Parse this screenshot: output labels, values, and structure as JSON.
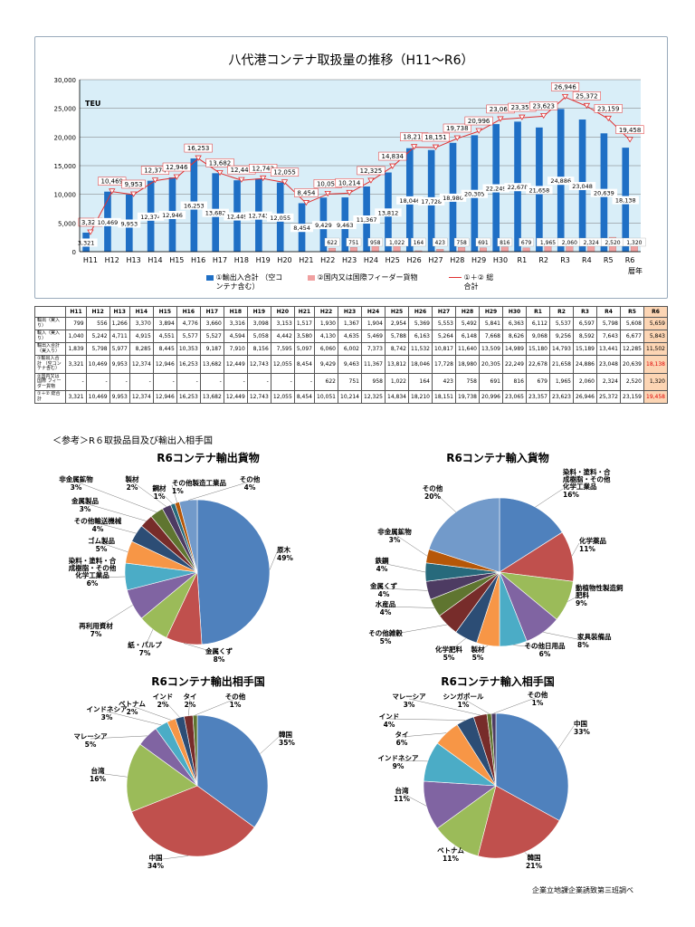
{
  "main_chart": {
    "title": "八代港コンテナ取扱量の推移（H11～R6）",
    "ylabel": "TEU",
    "x_unit": "暦年",
    "legend": {
      "bar1": "①輸出入合計 （空コンテナ含む）",
      "bar2": "②国内又は国際フィーダー貨物",
      "line": "①＋② 総合計"
    },
    "colors": {
      "bar1": "#1f6fc5",
      "bar2": "#f0a0a0",
      "line": "#e03030"
    }
  },
  "chart_data": [
    {
      "type": "bar",
      "title": "八代港コンテナ取扱量の推移（H11～R6）",
      "ylabel": "TEU",
      "ylim": [
        0,
        30000
      ],
      "yticks": [
        "0",
        "5,000",
        "10,000",
        "15,000",
        "20,000",
        "25,000",
        "30,000"
      ],
      "categories": [
        "H11",
        "H12",
        "H13",
        "H14",
        "H15",
        "H16",
        "H17",
        "H18",
        "H19",
        "H20",
        "H21",
        "H22",
        "H23",
        "H24",
        "H25",
        "H26",
        "H27",
        "H28",
        "H29",
        "H30",
        "R1",
        "R2",
        "R3",
        "R4",
        "R5",
        "R6"
      ],
      "series": [
        {
          "name": "①輸出入合計 （空コンテナ含む）",
          "type": "bar",
          "values": [
            3321,
            10469,
            9953,
            12374,
            12946,
            16253,
            13682,
            12449,
            12743,
            12055,
            8454,
            9429,
            9463,
            11367,
            13812,
            18046,
            17728,
            18980,
            20305,
            22249,
            22678,
            21658,
            24886,
            23048,
            20639,
            18138
          ]
        },
        {
          "name": "②国内又は国際フィーダー貨物",
          "type": "bar",
          "values": [
            null,
            null,
            null,
            null,
            null,
            null,
            null,
            null,
            null,
            null,
            null,
            622,
            751,
            958,
            1022,
            164,
            423,
            758,
            691,
            816,
            679,
            1965,
            2060,
            2324,
            2520,
            1320
          ]
        },
        {
          "name": "①＋② 総合計",
          "type": "line",
          "values": [
            3321,
            10469,
            9953,
            12374,
            12946,
            16253,
            13682,
            12449,
            12743,
            12055,
            8454,
            10051,
            10214,
            12325,
            14834,
            18210,
            18151,
            19738,
            20996,
            23065,
            23357,
            23623,
            26946,
            25372,
            23159,
            19458
          ]
        }
      ]
    },
    {
      "type": "pie",
      "title": "R6コンテナ輸出貨物",
      "slices": [
        {
          "label": "原木",
          "value": 49
        },
        {
          "label": "金属くず",
          "value": 8
        },
        {
          "label": "紙・パルプ",
          "value": 7
        },
        {
          "label": "再利用資材",
          "value": 7
        },
        {
          "label": "染料・塗料・合成樹脂・その他化学工業品",
          "value": 6
        },
        {
          "label": "ゴム製品",
          "value": 5
        },
        {
          "label": "その他輸送機械",
          "value": 4
        },
        {
          "label": "金属製品",
          "value": 3
        },
        {
          "label": "非金属鉱物",
          "value": 3
        },
        {
          "label": "製材",
          "value": 2
        },
        {
          "label": "鋼材",
          "value": 1
        },
        {
          "label": "その他製造工業品",
          "value": 1
        },
        {
          "label": "その他",
          "value": 4
        }
      ]
    },
    {
      "type": "pie",
      "title": "R6コンテナ輸入貨物",
      "slices": [
        {
          "label": "染料・塗料・合成樹脂・その他化学工業品",
          "value": 16
        },
        {
          "label": "化学薬品",
          "value": 11
        },
        {
          "label": "動植物性製造飼肥料",
          "value": 9
        },
        {
          "label": "家具装備品",
          "value": 8
        },
        {
          "label": "その他日用品",
          "value": 6
        },
        {
          "label": "製材",
          "value": 5
        },
        {
          "label": "化学肥料",
          "value": 5
        },
        {
          "label": "その他雑穀",
          "value": 5
        },
        {
          "label": "水産品",
          "value": 4
        },
        {
          "label": "金属くず",
          "value": 4
        },
        {
          "label": "鉄鋼",
          "value": 4
        },
        {
          "label": "非金属鉱物",
          "value": 3
        },
        {
          "label": "その他",
          "value": 20
        }
      ]
    },
    {
      "type": "pie",
      "title": "R6コンテナ輸出相手国",
      "slices": [
        {
          "label": "韓国",
          "value": 35
        },
        {
          "label": "中国",
          "value": 34
        },
        {
          "label": "台湾",
          "value": 16
        },
        {
          "label": "マレーシア",
          "value": 5
        },
        {
          "label": "インドネシア",
          "value": 3
        },
        {
          "label": "ベトナム",
          "value": 2
        },
        {
          "label": "インド",
          "value": 2
        },
        {
          "label": "タイ",
          "value": 2
        },
        {
          "label": "その他",
          "value": 1
        }
      ]
    },
    {
      "type": "pie",
      "title": "R6コンテナ輸入相手国",
      "slices": [
        {
          "label": "中国",
          "value": 33
        },
        {
          "label": "韓国",
          "value": 21
        },
        {
          "label": "ベトナム",
          "value": 11
        },
        {
          "label": "台湾",
          "value": 11
        },
        {
          "label": "インドネシア",
          "value": 9
        },
        {
          "label": "タイ",
          "value": 6
        },
        {
          "label": "インド",
          "value": 4
        },
        {
          "label": "マレーシア",
          "value": 3
        },
        {
          "label": "シンガポール",
          "value": 1
        },
        {
          "label": "その他",
          "value": 1
        }
      ]
    }
  ],
  "table": {
    "headers": [
      "",
      "H11",
      "H12",
      "H13",
      "H14",
      "H15",
      "H16",
      "H17",
      "H18",
      "H19",
      "H20",
      "H21",
      "H22",
      "H23",
      "H24",
      "H25",
      "H26",
      "H27",
      "H28",
      "H29",
      "H30",
      "R1",
      "R2",
      "R3",
      "R4",
      "R5",
      "R6"
    ],
    "rows": [
      {
        "label": "輸出（実入り）",
        "values": [
          "799",
          "556",
          "1,266",
          "3,370",
          "3,894",
          "4,776",
          "3,660",
          "3,316",
          "3,098",
          "3,153",
          "1,517",
          "1,930",
          "1,367",
          "1,904",
          "2,954",
          "5,369",
          "5,553",
          "5,492",
          "5,841",
          "6,363",
          "6,112",
          "5,537",
          "6,597",
          "5,798",
          "5,608",
          "5,659"
        ]
      },
      {
        "label": "輸入（実入り）",
        "values": [
          "1,040",
          "5,242",
          "4,711",
          "4,915",
          "4,551",
          "5,577",
          "5,527",
          "4,594",
          "5,058",
          "4,442",
          "3,580",
          "4,130",
          "4,635",
          "5,469",
          "5,788",
          "6,163",
          "5,264",
          "6,148",
          "7,668",
          "8,626",
          "9,068",
          "9,256",
          "8,592",
          "7,643",
          "6,677",
          "5,843"
        ]
      },
      {
        "label": "輸出入合計 （実入り）",
        "values": [
          "1,839",
          "5,798",
          "5,977",
          "8,285",
          "8,445",
          "10,353",
          "9,187",
          "7,910",
          "8,156",
          "7,595",
          "5,097",
          "6,060",
          "6,002",
          "7,373",
          "8,742",
          "11,532",
          "10,817",
          "11,640",
          "13,509",
          "14,989",
          "15,180",
          "14,793",
          "15,189",
          "13,441",
          "12,285",
          "11,502"
        ]
      },
      {
        "label": "①輸出入合計 （空コンテナ含む）",
        "values": [
          "3,321",
          "10,469",
          "9,953",
          "12,374",
          "12,946",
          "16,253",
          "13,682",
          "12,449",
          "12,743",
          "12,055",
          "8,454",
          "9,429",
          "9,463",
          "11,367",
          "13,812",
          "18,046",
          "17,728",
          "18,980",
          "20,305",
          "22,249",
          "22,678",
          "21,658",
          "24,886",
          "23,048",
          "20,639",
          "18,138"
        ]
      },
      {
        "label": "②国内又は国際 フィーダー貨物",
        "values": [
          "-",
          "-",
          "-",
          "-",
          "-",
          "-",
          "-",
          "-",
          "-",
          "-",
          "-",
          "622",
          "751",
          "958",
          "1,022",
          "164",
          "423",
          "758",
          "691",
          "816",
          "679",
          "1,965",
          "2,060",
          "2,324",
          "2,520",
          "1,320"
        ]
      },
      {
        "label": "①＋② 総合計",
        "values": [
          "3,321",
          "10,469",
          "9,953",
          "12,374",
          "12,946",
          "16,253",
          "13,682",
          "12,449",
          "12,743",
          "12,055",
          "8,454",
          "10,051",
          "10,214",
          "12,325",
          "14,834",
          "18,210",
          "18,151",
          "19,738",
          "20,996",
          "23,065",
          "23,357",
          "23,623",
          "26,946",
          "25,372",
          "23,159",
          "19,458"
        ]
      }
    ]
  },
  "reference_heading": "＜参考＞R６取扱品目及び輸出入相手国",
  "footnote": "企業立地課企業誘致第三班調べ",
  "pie_colors": [
    "#4f81bd",
    "#c0504d",
    "#9bbb59",
    "#8064a2",
    "#4bacc6",
    "#f79646",
    "#2c4d75",
    "#772c2a",
    "#5f7530",
    "#4d3b62",
    "#276a7c",
    "#b65708",
    "#729aca"
  ]
}
